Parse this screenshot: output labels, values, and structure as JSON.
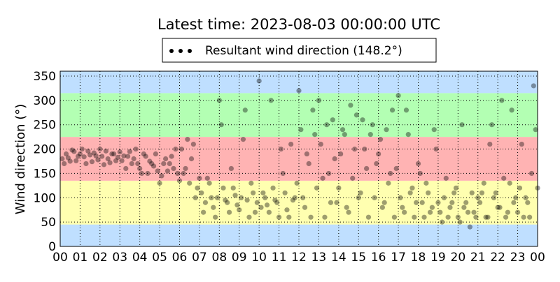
{
  "chart_data": {
    "type": "scatter",
    "title": "Latest time: 2023-08-03 00:00:00 UTC",
    "y_label": "Wind direction (°)",
    "xlim": [
      0,
      24
    ],
    "ylim": [
      0,
      360
    ],
    "xticks": [
      {
        "value": 0,
        "label": "00"
      },
      {
        "value": 1,
        "label": "01"
      },
      {
        "value": 2,
        "label": "02"
      },
      {
        "value": 3,
        "label": "03"
      },
      {
        "value": 4,
        "label": "04"
      },
      {
        "value": 5,
        "label": "05"
      },
      {
        "value": 6,
        "label": "06"
      },
      {
        "value": 7,
        "label": "07"
      },
      {
        "value": 8,
        "label": "08"
      },
      {
        "value": 9,
        "label": "09"
      },
      {
        "value": 10,
        "label": "10"
      },
      {
        "value": 11,
        "label": "11"
      },
      {
        "value": 12,
        "label": "12"
      },
      {
        "value": 13,
        "label": "13"
      },
      {
        "value": 14,
        "label": "14"
      },
      {
        "value": 15,
        "label": "15"
      },
      {
        "value": 16,
        "label": "16"
      },
      {
        "value": 17,
        "label": "17"
      },
      {
        "value": 18,
        "label": "18"
      },
      {
        "value": 19,
        "label": "19"
      },
      {
        "value": 20,
        "label": "20"
      },
      {
        "value": 21,
        "label": "21"
      },
      {
        "value": 22,
        "label": "22"
      },
      {
        "value": 23,
        "label": "23"
      },
      {
        "value": 24,
        "label": "00"
      }
    ],
    "yticks": [
      0,
      50,
      100,
      150,
      200,
      250,
      300,
      350
    ],
    "grid": true,
    "legend": "top-center",
    "bands": [
      {
        "from": 0,
        "to": 45,
        "color": "#bfdfff"
      },
      {
        "from": 45,
        "to": 135,
        "color": "#ffffb0"
      },
      {
        "from": 135,
        "to": 225,
        "color": "#ffb3b3"
      },
      {
        "from": 225,
        "to": 315,
        "color": "#b3ffb3"
      },
      {
        "from": 315,
        "to": 360,
        "color": "#bfdfff"
      }
    ],
    "series": [
      {
        "name": "Resultant wind direction (148.2°)",
        "color": "#000000",
        "x": [
          0.1,
          0.3,
          0.5,
          0.7,
          0.9,
          1.1,
          1.3,
          1.5,
          1.7,
          1.9,
          2.1,
          2.3,
          2.5,
          2.7,
          2.9,
          3.1,
          3.3,
          3.5,
          3.7,
          3.9,
          4.1,
          4.3,
          4.5,
          4.7,
          4.9,
          5.1,
          5.3,
          5.5,
          5.7,
          5.9,
          6.1,
          6.3,
          6.5,
          6.7,
          6.9,
          7.1,
          7.3,
          7.5,
          7.7,
          7.9,
          8.1,
          8.3,
          8.5,
          8.7,
          8.9,
          9.1,
          9.3,
          9.5,
          9.7,
          9.9,
          10.1,
          10.3,
          10.5,
          10.7,
          10.9,
          11.1,
          11.3,
          11.5,
          11.7,
          11.9,
          12.1,
          12.3,
          12.5,
          12.7,
          12.9,
          13.1,
          13.3,
          13.5,
          13.7,
          13.9,
          14.1,
          14.3,
          14.5,
          14.7,
          14.9,
          15.1,
          15.3,
          15.5,
          15.7,
          15.9,
          16.1,
          16.3,
          16.5,
          16.7,
          16.9,
          17.1,
          17.3,
          17.5,
          17.7,
          17.9,
          18.1,
          18.3,
          18.5,
          18.7,
          18.9,
          19.1,
          19.3,
          19.5,
          19.7,
          19.9,
          20.1,
          20.3,
          20.5,
          20.7,
          20.9,
          21.1,
          21.3,
          21.5,
          21.7,
          21.9,
          22.1,
          22.3,
          22.5,
          22.7,
          22.9,
          23.1,
          23.3,
          23.5,
          23.7,
          23.9,
          0.2,
          0.4,
          0.6,
          0.8,
          1.0,
          1.2,
          1.4,
          1.6,
          1.8,
          2.0,
          2.2,
          2.4,
          2.6,
          2.8,
          3.0,
          3.2,
          3.4,
          3.6,
          3.8,
          4.0,
          4.2,
          4.4,
          4.6,
          4.8,
          5.0,
          5.2,
          5.4,
          5.6,
          5.8,
          6.0,
          6.2,
          6.4,
          6.6,
          6.8,
          7.0,
          7.2,
          7.4,
          7.6,
          7.8,
          8.0,
          8.2,
          8.4,
          8.6,
          8.8,
          9.0,
          9.2,
          9.4,
          9.6,
          9.8,
          10.0,
          10.2,
          10.4,
          10.6,
          10.8,
          11.0,
          11.2,
          11.4,
          11.6,
          11.8,
          12.0,
          12.2,
          12.4,
          12.6,
          12.8,
          13.0,
          13.2,
          13.4,
          13.6,
          13.8,
          14.0,
          14.2,
          14.4,
          14.6,
          14.8,
          15.0,
          15.2,
          15.4,
          15.6,
          15.8,
          16.0,
          16.2,
          16.4,
          16.6,
          16.8,
          17.0,
          17.2,
          17.4,
          17.6,
          17.8,
          18.0,
          18.2,
          18.4,
          18.6,
          18.8,
          19.0,
          19.2,
          19.4,
          19.6,
          19.8,
          20.0,
          20.2,
          20.4,
          20.6,
          20.8,
          21.0,
          21.2,
          21.4,
          21.6,
          21.8,
          22.0,
          22.2,
          22.4,
          22.6,
          22.8,
          23.0,
          23.2,
          23.4,
          23.6,
          23.8,
          24.0
        ],
        "values": [
          180,
          190,
          175,
          195,
          185,
          200,
          170,
          188,
          192,
          178,
          185,
          196,
          172,
          190,
          183,
          176,
          160,
          195,
          180,
          170,
          150,
          185,
          175,
          165,
          155,
          145,
          180,
          170,
          160,
          150,
          200,
          160,
          130,
          210,
          120,
          110,
          90,
          130,
          80,
          100,
          250,
          95,
          70,
          120,
          85,
          100,
          280,
          60,
          110,
          90,
          80,
          100,
          70,
          120,
          90,
          200,
          110,
          60,
          95,
          130,
          240,
          80,
          170,
          280,
          120,
          210,
          60,
          150,
          260,
          90,
          190,
          230,
          70,
          140,
          270,
          110,
          200,
          60,
          250,
          170,
          220,
          90,
          130,
          280,
          160,
          100,
          70,
          230,
          120,
          90,
          150,
          60,
          110,
          80,
          200,
          70,
          100,
          60,
          90,
          120,
          50,
          80,
          70,
          110,
          60,
          90,
          130,
          60,
          250,
          110,
          80,
          140,
          70,
          280,
          100,
          120,
          60,
          90,
          150,
          240,
          170,
          182,
          198,
          176,
          190,
          184,
          196,
          174,
          186,
          200,
          168,
          180,
          190,
          176,
          194,
          186,
          185,
          170,
          200,
          160,
          190,
          150,
          170,
          190,
          130,
          170,
          155,
          185,
          200,
          135,
          150,
          220,
          180,
          100,
          140,
          70,
          140,
          100,
          60,
          300,
          120,
          90,
          160,
          105,
          75,
          220,
          95,
          130,
          70,
          340,
          110,
          85,
          300,
          95,
          60,
          150,
          75,
          210,
          100,
          320,
          100,
          190,
          60,
          230,
          300,
          140,
          250,
          90,
          180,
          120,
          240,
          80,
          290,
          200,
          100,
          260,
          160,
          230,
          100,
          190,
          80,
          240,
          150,
          60,
          310,
          80,
          280,
          110,
          60,
          170,
          90,
          130,
          70,
          240,
          90,
          50,
          140,
          80,
          110,
          60,
          250,
          90,
          40,
          70,
          100,
          110,
          60,
          210,
          100,
          80,
          300,
          60,
          130,
          90,
          70,
          210,
          100,
          60,
          330,
          120
        ]
      }
    ]
  }
}
